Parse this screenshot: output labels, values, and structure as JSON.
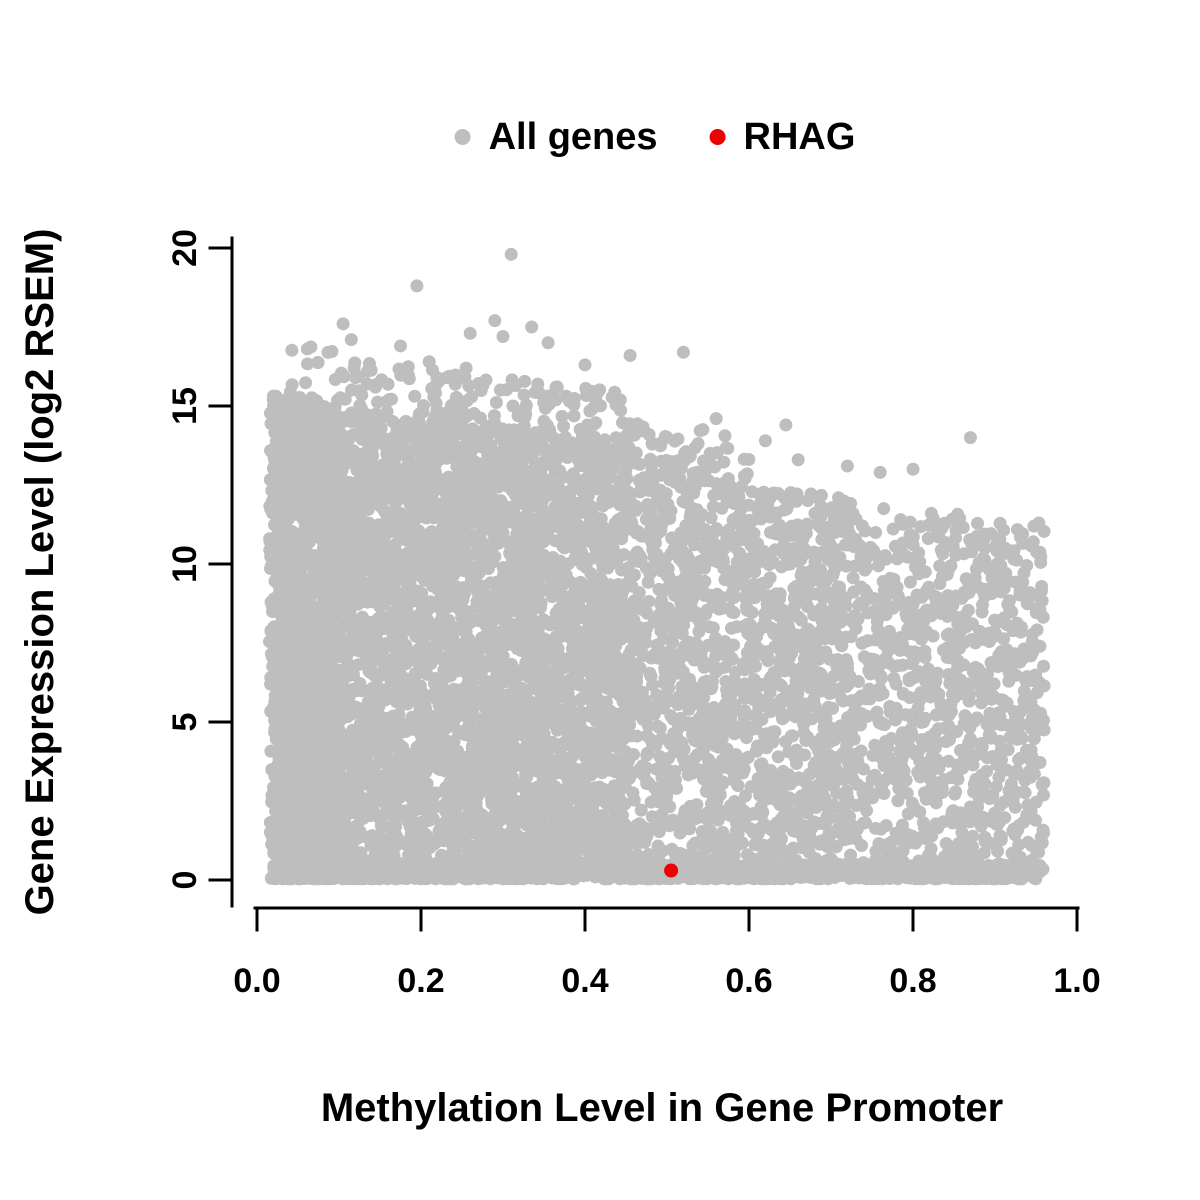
{
  "legend": {
    "items": [
      {
        "label": "All genes",
        "color": "#bebebe",
        "marker": "circle"
      },
      {
        "label": "RHAG",
        "color": "#ee0000",
        "marker": "circle"
      }
    ]
  },
  "axes": {
    "x": {
      "label": "Methylation Level in Gene Promoter",
      "tick_labels": [
        "0.0",
        "0.2",
        "0.4",
        "0.6",
        "0.8",
        "1.0"
      ],
      "tick_values": [
        0,
        0.2,
        0.4,
        0.6,
        0.8,
        1.0
      ],
      "range": [
        0,
        1
      ]
    },
    "y": {
      "label": "Gene Expression Level (log2 RSEM)",
      "tick_labels": [
        "0",
        "5",
        "10",
        "15",
        "20"
      ],
      "tick_values": [
        0,
        5,
        10,
        15,
        20
      ],
      "range": [
        0,
        20
      ]
    }
  },
  "chart_data": {
    "type": "scatter",
    "title": "",
    "xlabel": "Methylation Level in Gene Promoter",
    "ylabel": "Gene Expression Level (log2 RSEM)",
    "xlim": [
      0,
      1
    ],
    "ylim": [
      0,
      20
    ],
    "xticks": [
      0,
      0.2,
      0.4,
      0.6,
      0.8,
      1.0
    ],
    "yticks": [
      0,
      5,
      10,
      15,
      20
    ],
    "grid": false,
    "legend_position": "top-center",
    "series": [
      {
        "name": "All genes",
        "color": "#bebebe",
        "type": "point-cloud",
        "description": "Dense cloud of ~9000 genes from methylation 0.02 to 0.96; upper expression envelope ~15 at low methylation declining to ~11 at methylation 0.95; density drops markedly above methylation ~0.45; solid floor of near-zero expression across the whole methylation range; sparse outliers up to 19.8 between methylation 0.1 and 0.55.",
        "clusters": [
          {
            "x_min": 0.015,
            "x_max": 0.1,
            "count": 800,
            "env_base": 15.5,
            "env_slope": -3.0
          },
          {
            "x_min": 0.02,
            "x_max": 0.45,
            "count": 4500,
            "env_base": 15.2,
            "env_slope": -3.0
          },
          {
            "x_min": 0.45,
            "x_max": 0.72,
            "count": 1500,
            "env_base": 14.4,
            "env_slope": -3.2
          },
          {
            "x_min": 0.72,
            "x_max": 0.96,
            "count": 900,
            "env_base": 13.8,
            "env_slope": -2.6
          },
          {
            "x_min": 0.02,
            "x_max": 0.95,
            "count": 1300,
            "env_base": 0.5,
            "env_slope": 0
          }
        ],
        "sparse_top": {
          "x_min": 0.04,
          "x_max": 0.6,
          "count": 220,
          "band": 1.6
        },
        "outliers": [
          [
            0.31,
            19.8
          ],
          [
            0.195,
            18.8
          ],
          [
            0.29,
            17.7
          ],
          [
            0.335,
            17.5
          ],
          [
            0.105,
            17.6
          ],
          [
            0.3,
            17.2
          ],
          [
            0.355,
            17.0
          ],
          [
            0.26,
            17.3
          ],
          [
            0.115,
            17.1
          ],
          [
            0.175,
            16.9
          ],
          [
            0.21,
            16.4
          ],
          [
            0.255,
            16.2
          ],
          [
            0.4,
            16.3
          ],
          [
            0.455,
            16.6
          ],
          [
            0.52,
            16.7
          ],
          [
            0.245,
            15.9
          ],
          [
            0.135,
            16.1
          ],
          [
            0.56,
            14.6
          ],
          [
            0.62,
            13.9
          ],
          [
            0.645,
            14.4
          ],
          [
            0.87,
            14.0
          ],
          [
            0.66,
            13.3
          ],
          [
            0.72,
            13.1
          ],
          [
            0.76,
            12.9
          ],
          [
            0.8,
            13.0
          ]
        ]
      },
      {
        "name": "RHAG",
        "color": "#ee0000",
        "type": "point",
        "points": [
          [
            0.505,
            0.3
          ]
        ]
      }
    ]
  }
}
